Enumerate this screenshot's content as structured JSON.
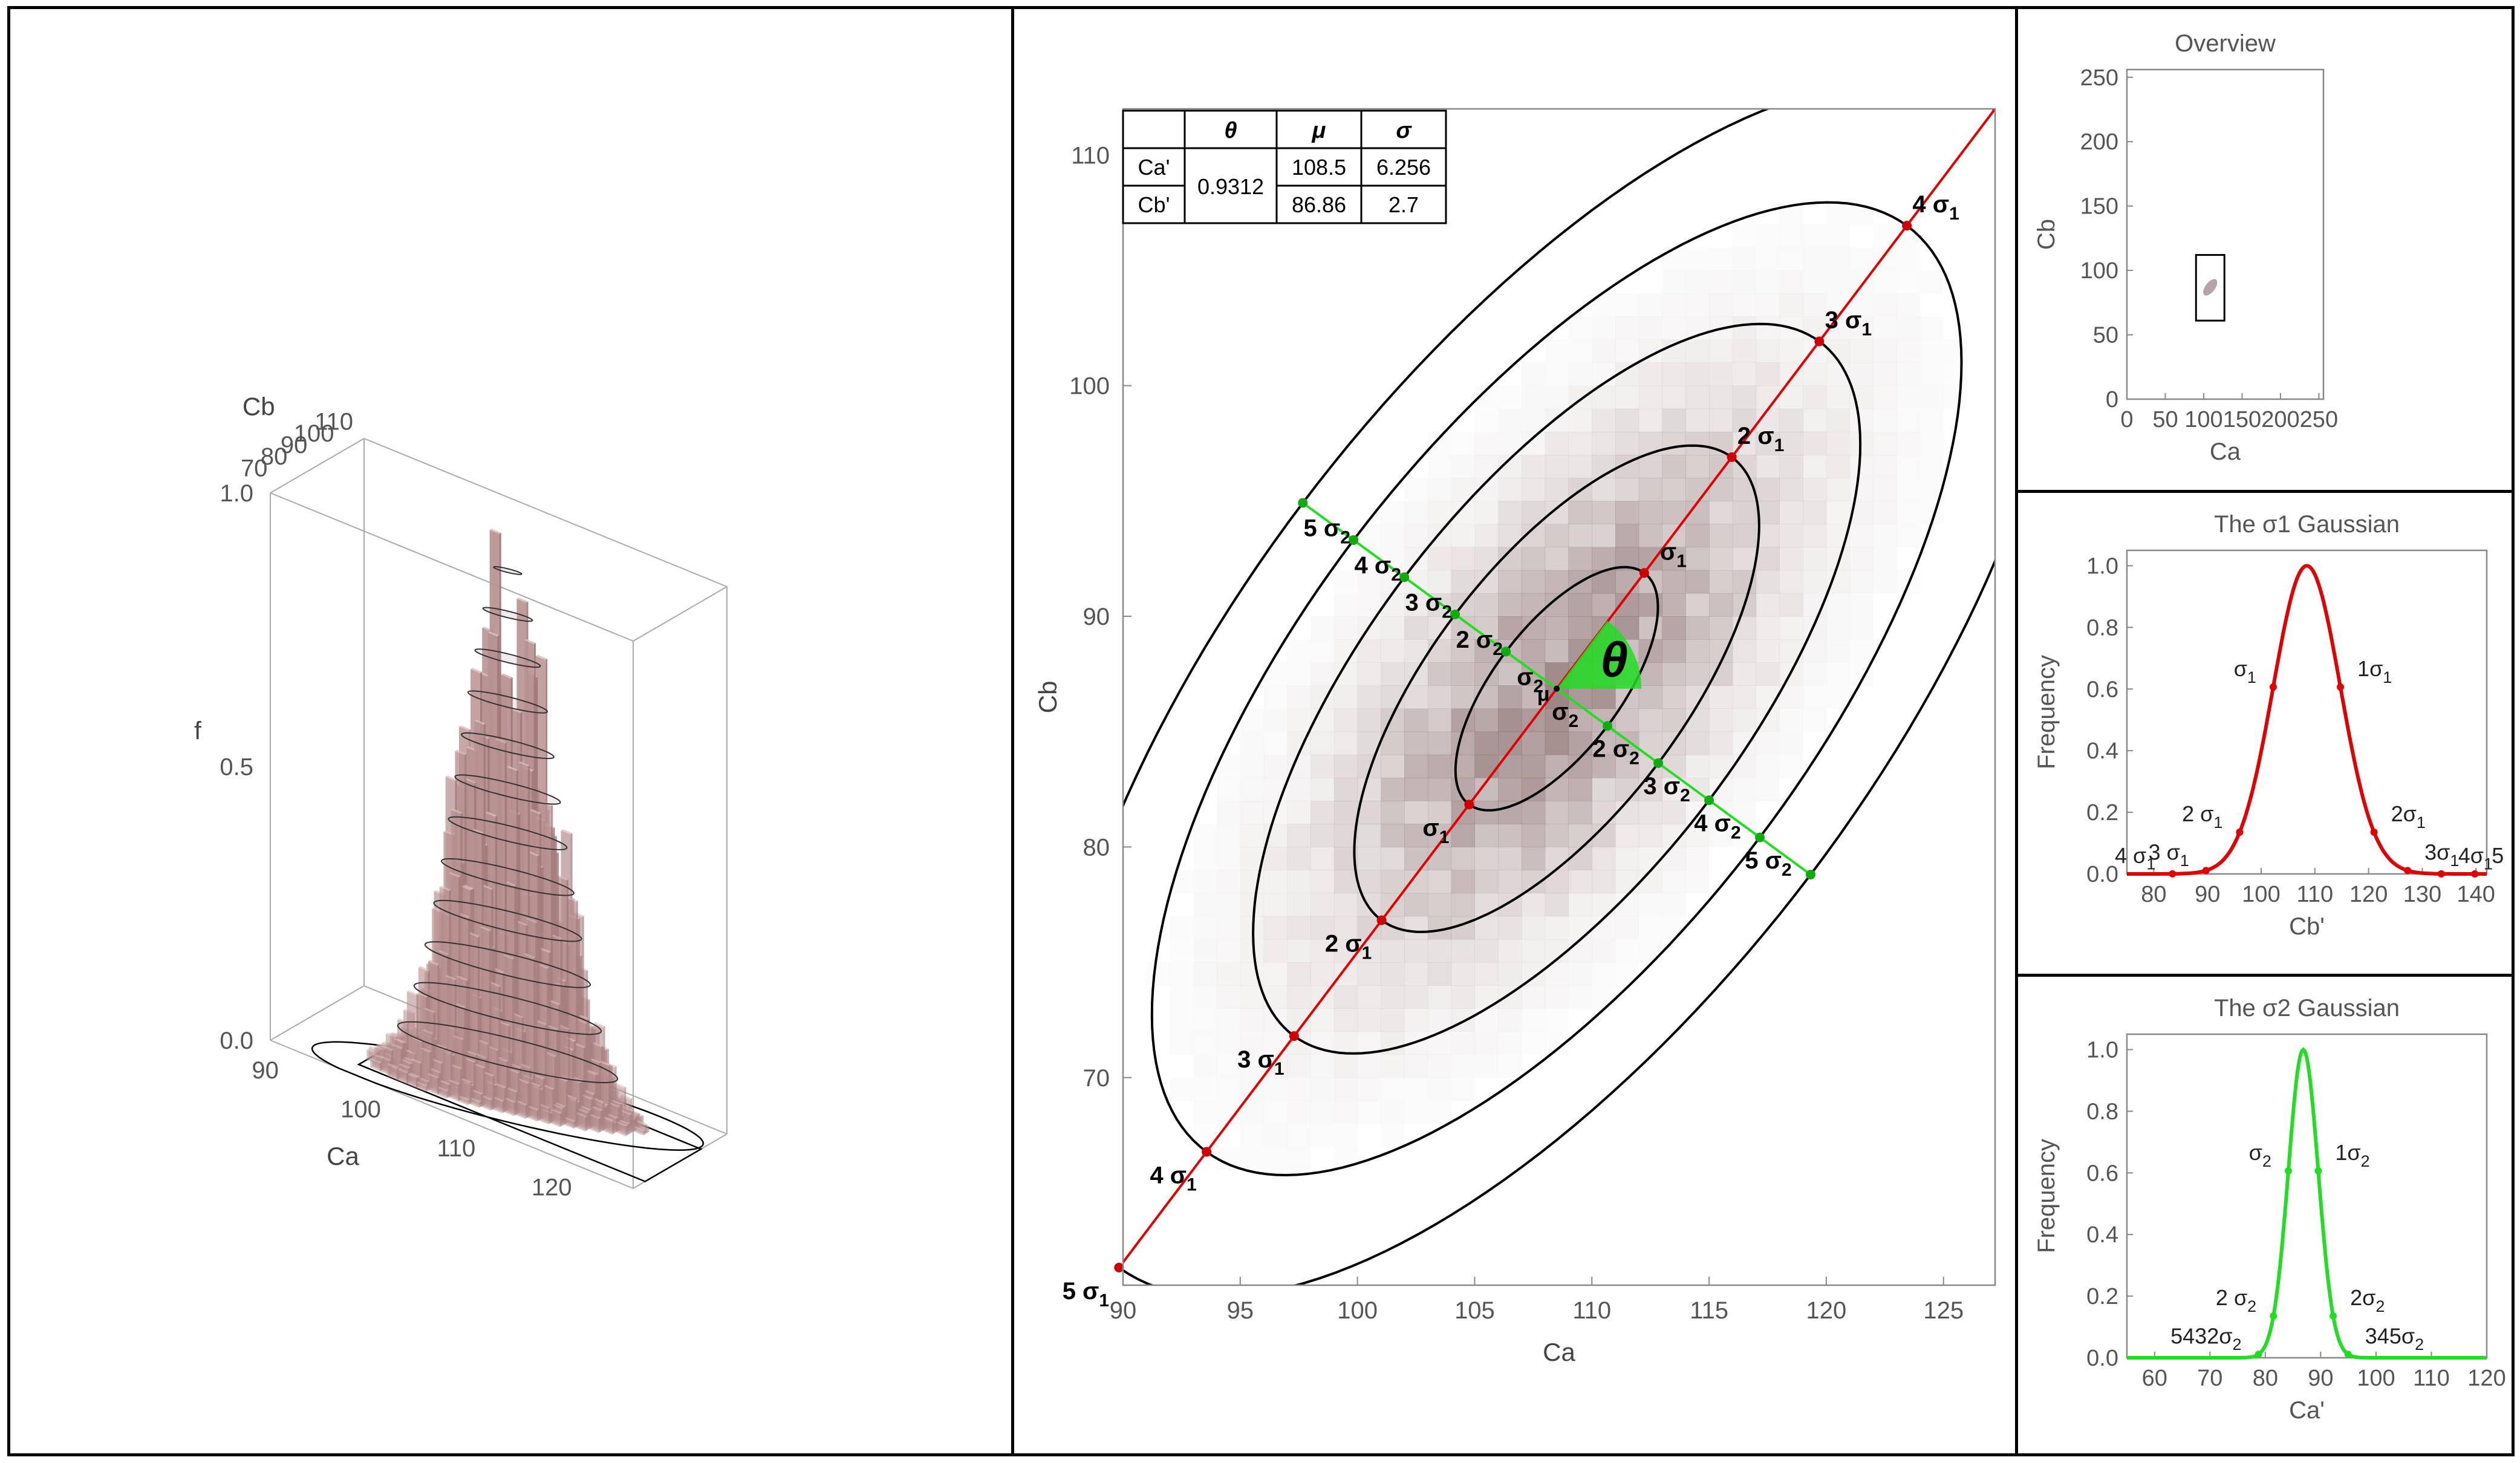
{
  "colors": {
    "frame": "#000000",
    "axis": "#777777",
    "tick_text": "#555555",
    "surface": "#b99292",
    "surface_light": "#d8bcbc",
    "major_axis": "#e00000",
    "minor_axis": "#22dd22",
    "density": "#7a5a5a",
    "contour": "#000000"
  },
  "chart_data": [
    {
      "type": "surface3d",
      "title": "",
      "xlabel": "Ca",
      "ylabel": "Cb",
      "zlabel": "f",
      "x_ticks": [
        "90",
        "100",
        "110",
        "120"
      ],
      "y_ticks": [
        "70",
        "80",
        "90",
        "100",
        "110"
      ],
      "z_ticks": [
        "0.0",
        "0.5",
        "1.0"
      ],
      "xlim": [
        88,
        126
      ],
      "ylim": [
        66,
        113
      ],
      "zlim": [
        0,
        1.0
      ]
    },
    {
      "type": "heatmap",
      "title": "",
      "xlabel": "Ca",
      "ylabel": "Cb",
      "x_ticks": [
        "90",
        "95",
        "100",
        "105",
        "110",
        "115",
        "120",
        "125"
      ],
      "y_ticks": [
        "70",
        "80",
        "90",
        "100",
        "110"
      ],
      "xlim": [
        90,
        127.2
      ],
      "ylim": [
        61,
        112
      ],
      "mean": {
        "x": 108.5,
        "y": 86.86,
        "label": "μ"
      },
      "theta": 0.9312,
      "theta_label": "θ",
      "table": {
        "headers": [
          "",
          "θ",
          "μ",
          "σ"
        ],
        "rows": [
          {
            "name": "Ca'",
            "theta": "0.9312",
            "mu": "108.5",
            "sigma": "6.256"
          },
          {
            "name": "Cb'",
            "theta": "",
            "mu": "86.86",
            "sigma": "2.7"
          }
        ]
      },
      "sigma1_labels": [
        {
          "t": 1,
          "text": "σ1"
        },
        {
          "t": -1,
          "text": "σ1"
        },
        {
          "t": 2,
          "text": "2 σ1"
        },
        {
          "t": -2,
          "text": "2 σ1"
        },
        {
          "t": 3,
          "text": "3 σ1"
        },
        {
          "t": -3,
          "text": "3 σ1"
        },
        {
          "t": 4,
          "text": "4 σ1"
        },
        {
          "t": -4,
          "text": "4 σ1"
        },
        {
          "t": -5,
          "text": "5 σ1"
        }
      ],
      "sigma2_labels": [
        {
          "t": 1,
          "text": "σ2"
        },
        {
          "t": -1,
          "text": "σ2"
        },
        {
          "t": 2,
          "text": "2 σ2"
        },
        {
          "t": -2,
          "text": "2 σ2"
        },
        {
          "t": 3,
          "text": "3 σ2"
        },
        {
          "t": -3,
          "text": "3 σ2"
        },
        {
          "t": 4,
          "text": "4 σ2"
        },
        {
          "t": -4,
          "text": "4 σ2"
        },
        {
          "t": 5,
          "text": "5 σ2"
        },
        {
          "t": -5,
          "text": "5 σ2"
        }
      ],
      "contour_levels_sigma": [
        1,
        2,
        3,
        4,
        5
      ]
    },
    {
      "type": "scatter",
      "title": "Overview",
      "xlabel": "Ca",
      "ylabel": "Cb",
      "x_ticks": [
        "0",
        "50",
        "100",
        "150",
        "200",
        "250"
      ],
      "y_ticks": [
        "0",
        "50",
        "100",
        "150",
        "200",
        "250"
      ],
      "xlim": [
        0,
        256
      ],
      "ylim": [
        0,
        256
      ],
      "window": {
        "x": [
          90,
          127
        ],
        "y": [
          61,
          112
        ]
      }
    },
    {
      "type": "line",
      "title": "The σ1 Gaussian",
      "xlabel": "Cb'",
      "ylabel": "Frequency",
      "x_ticks": [
        "80",
        "90",
        "100",
        "110",
        "120",
        "130",
        "140"
      ],
      "y_ticks": [
        "0.0",
        "0.2",
        "0.4",
        "0.6",
        "0.8",
        "1.0"
      ],
      "xlim": [
        75,
        142
      ],
      "ylim": [
        0,
        1.05
      ],
      "mu": 108.5,
      "sigma": 6.256,
      "marker_labels": [
        {
          "k": -1,
          "text": "σ1"
        },
        {
          "k": 1,
          "text": "1σ1"
        },
        {
          "k": -2,
          "text": "2 σ1"
        },
        {
          "k": 2,
          "text": "2σ1"
        },
        {
          "k": -3,
          "text": "3 σ1"
        },
        {
          "k": 3,
          "text": "3σ1"
        },
        {
          "k": -4,
          "text": "4 σ1"
        },
        {
          "k": 4,
          "text": "4σ1"
        },
        {
          "k": 5,
          "text": "5"
        }
      ]
    },
    {
      "type": "line",
      "title": "The σ2 Gaussian",
      "xlabel": "Ca'",
      "ylabel": "Frequency",
      "x_ticks": [
        "60",
        "70",
        "80",
        "90",
        "100",
        "110",
        "120"
      ],
      "y_ticks": [
        "0.0",
        "0.2",
        "0.4",
        "0.6",
        "0.8",
        "1.0"
      ],
      "xlim": [
        55,
        120
      ],
      "ylim": [
        0,
        1.05
      ],
      "mu": 86.86,
      "sigma": 2.7,
      "marker_labels": [
        {
          "k": -1,
          "text": "σ2"
        },
        {
          "k": 1,
          "text": "1σ2"
        },
        {
          "k": -2,
          "text": "2 σ2"
        },
        {
          "k": 2,
          "text": "2σ2"
        },
        {
          "k": -3,
          "text": "5432σ2"
        },
        {
          "k": 3,
          "text": "345σ2"
        }
      ]
    }
  ]
}
